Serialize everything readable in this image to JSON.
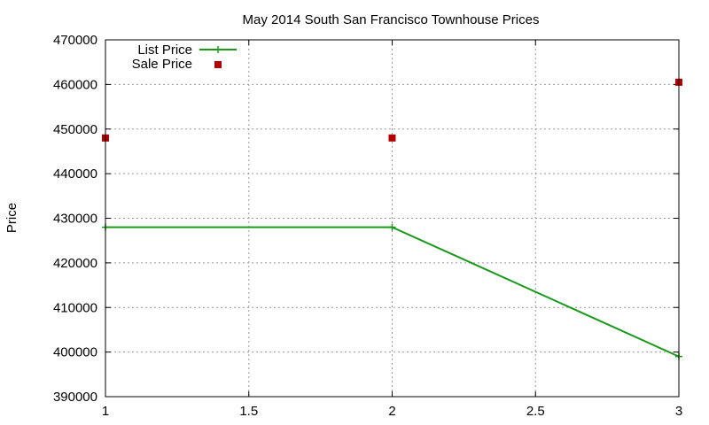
{
  "chart_data": {
    "type": "line",
    "title": "May 2014 South San Francisco Townhouse Prices",
    "xlabel": "",
    "ylabel": "Price",
    "xlim": [
      1,
      3
    ],
    "ylim": [
      390000,
      470000
    ],
    "x_ticks": [
      1,
      1.5,
      2,
      2.5,
      3
    ],
    "x_tick_labels": [
      "1",
      "1.5",
      "2",
      "2.5",
      "3"
    ],
    "y_ticks": [
      390000,
      400000,
      410000,
      420000,
      430000,
      440000,
      450000,
      460000,
      470000
    ],
    "y_tick_labels": [
      "390000",
      "400000",
      "410000",
      "420000",
      "430000",
      "440000",
      "450000",
      "460000",
      "470000"
    ],
    "grid": true,
    "legend_position": "top-left",
    "series": [
      {
        "name": "List Price",
        "style": "line+plus-markers",
        "color": "#1a9a1a",
        "points": [
          [
            1,
            428000
          ],
          [
            2,
            428000
          ],
          [
            3,
            399000
          ]
        ]
      },
      {
        "name": "Sale Price",
        "style": "square-markers",
        "color": "#b30000",
        "points": [
          [
            1,
            448000
          ],
          [
            2,
            448000
          ],
          [
            3,
            460500
          ]
        ]
      }
    ]
  }
}
